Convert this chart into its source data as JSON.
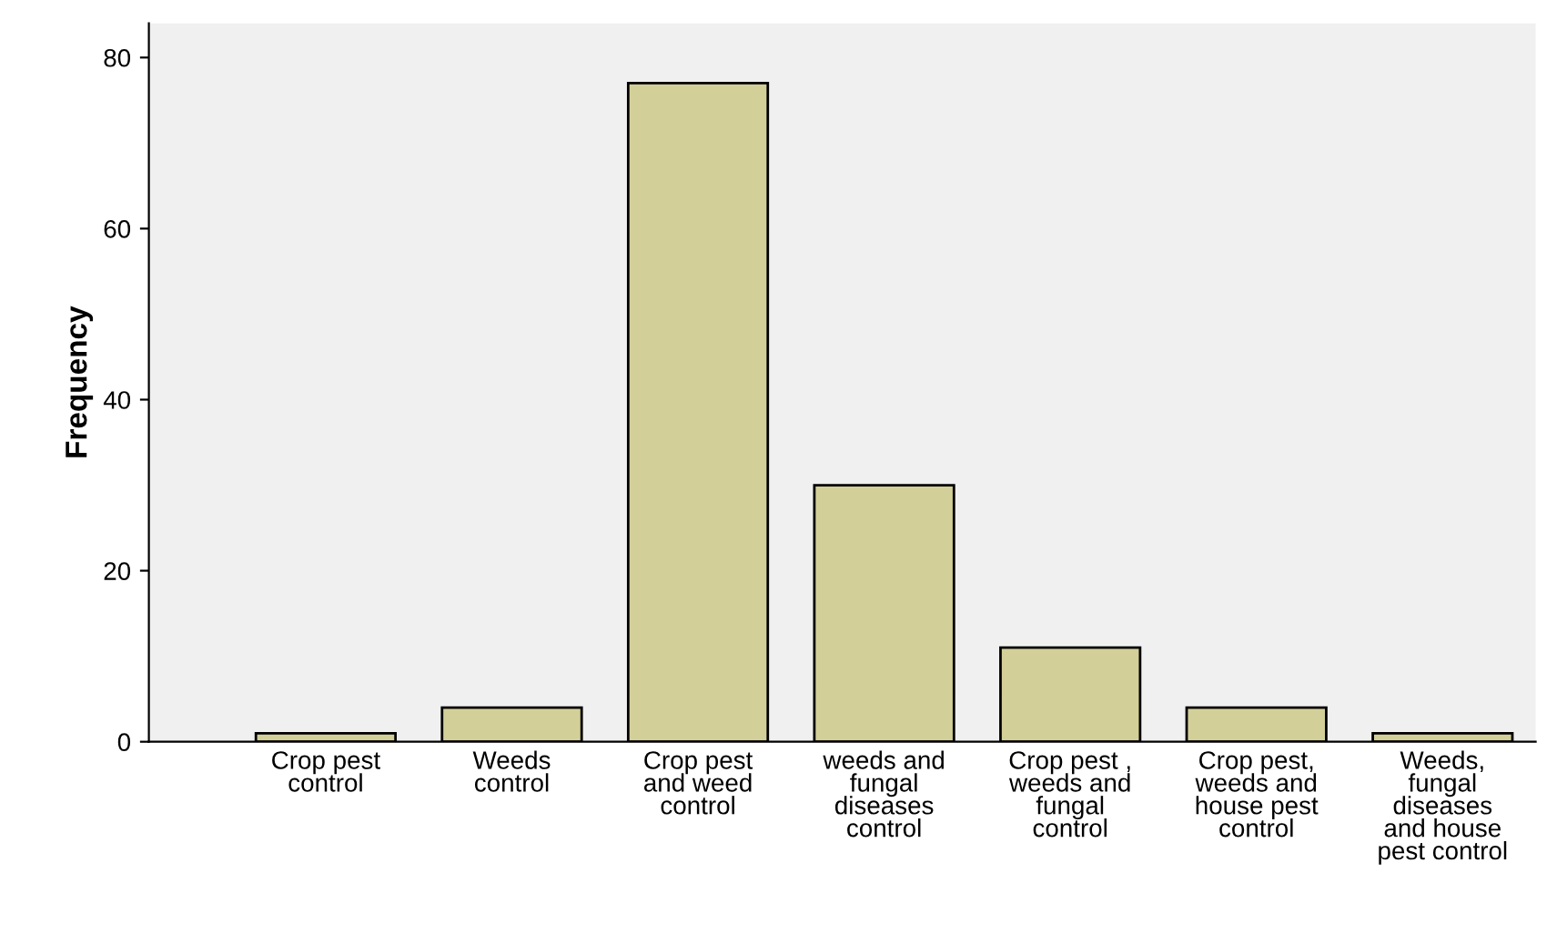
{
  "chart_data": {
    "type": "bar",
    "ylabel": "Frequency",
    "categories": [
      "Crop pest\ncontrol",
      "Weeds\ncontrol",
      "Crop pest\nand weed\ncontrol",
      "weeds and\nfungal\ndiseases\ncontrol",
      "Crop pest ,\nweeds and\nfungal\ncontrol",
      "Crop pest,\nweeds and\nhouse pest\ncontrol",
      "Weeds,\nfungal\ndiseases\nand house\npest control"
    ],
    "values": [
      1,
      4,
      77,
      30,
      11,
      4,
      1
    ],
    "color": "#d3cf98",
    "ylim": [
      0,
      84
    ],
    "yticks": [
      0,
      20,
      40,
      60,
      80
    ],
    "grid": false,
    "legend": false
  }
}
